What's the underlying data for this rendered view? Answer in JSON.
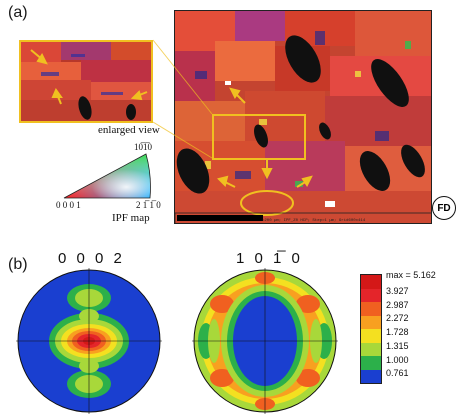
{
  "panel_a": {
    "label": "(a)",
    "enlarged_view_caption": "enlarged view",
    "ipf_map_caption": "IPF map",
    "ipf_triangle": {
      "top_index": "10̅1̅0",
      "left_index": "0 0 0 1",
      "right_index": "2 1̅ 1̅ 0"
    },
    "scale_bar_text": "=200 µm; IPF_Z0 HCP; Step=1 µm; Grid600x414",
    "direction_badge": "FD"
  },
  "panel_b": {
    "label": "(b)",
    "pole_figures": [
      {
        "title": "0 0 0 2"
      },
      {
        "title": "1 0 1̅ 0"
      }
    ],
    "legend": {
      "max_label": "max = 5.162",
      "levels": [
        {
          "value": "3.927",
          "color": "#e4252a"
        },
        {
          "value": "2.987",
          "color": "#f06020"
        },
        {
          "value": "2.272",
          "color": "#f8a020"
        },
        {
          "value": "1.728",
          "color": "#f4e020"
        },
        {
          "value": "1.315",
          "color": "#a8d83a"
        },
        {
          "value": "1.000",
          "color": "#2cb04a"
        },
        {
          "value": "0.761",
          "color": "#1a3fd0"
        }
      ],
      "top_color": "#d41818"
    }
  }
}
